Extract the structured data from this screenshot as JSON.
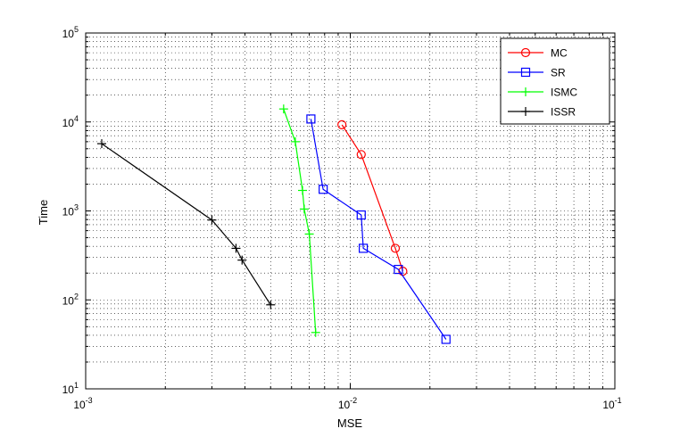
{
  "chart_data": {
    "type": "line",
    "title": "",
    "xlabel": "MSE",
    "ylabel": "Time",
    "x_scale": "log",
    "y_scale": "log",
    "xlim": [
      0.001,
      0.1
    ],
    "ylim": [
      10,
      100000
    ],
    "grid": "on (dotted, major and minor)",
    "legend_position": "top-right",
    "x_ticks": [
      {
        "value": 0.001,
        "base": "10",
        "exp": "-3"
      },
      {
        "value": 0.01,
        "base": "10",
        "exp": "-2"
      },
      {
        "value": 0.1,
        "base": "10",
        "exp": "-1"
      }
    ],
    "y_ticks": [
      {
        "value": 10,
        "base": "10",
        "exp": "1"
      },
      {
        "value": 100,
        "base": "10",
        "exp": "2"
      },
      {
        "value": 1000,
        "base": "10",
        "exp": "3"
      },
      {
        "value": 10000,
        "base": "10",
        "exp": "4"
      },
      {
        "value": 100000,
        "base": "10",
        "exp": "5"
      }
    ],
    "series": [
      {
        "name": "MC",
        "color": "#ff0000",
        "marker": "circle",
        "points": [
          [
            0.0093,
            9300
          ],
          [
            0.011,
            4300
          ],
          [
            0.0148,
            380
          ],
          [
            0.0158,
            210
          ]
        ]
      },
      {
        "name": "SR",
        "color": "#0000ff",
        "marker": "square",
        "points": [
          [
            0.0071,
            10800
          ],
          [
            0.0079,
            1750
          ],
          [
            0.011,
            900
          ],
          [
            0.0112,
            380
          ],
          [
            0.0152,
            220
          ],
          [
            0.023,
            36
          ]
        ]
      },
      {
        "name": "ISMC",
        "color": "#00ff00",
        "marker": "plus",
        "points": [
          [
            0.0056,
            14000
          ],
          [
            0.0062,
            6000
          ],
          [
            0.0066,
            1700
          ],
          [
            0.0067,
            1050
          ],
          [
            0.007,
            550
          ],
          [
            0.0074,
            43
          ]
        ]
      },
      {
        "name": "ISSR",
        "color": "#000000",
        "marker": "plus",
        "points": [
          [
            0.00115,
            5700
          ],
          [
            0.003,
            790
          ],
          [
            0.0037,
            380
          ],
          [
            0.0039,
            280
          ],
          [
            0.005,
            88
          ]
        ]
      }
    ]
  }
}
